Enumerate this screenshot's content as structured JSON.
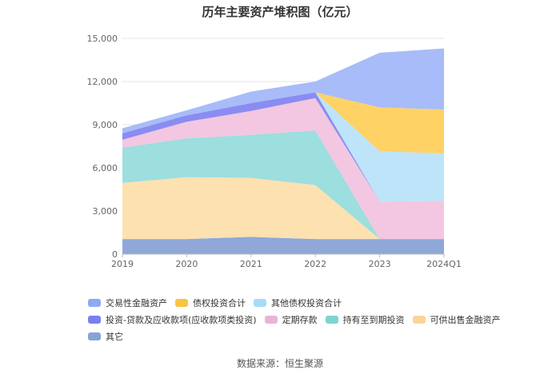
{
  "chart_data": {
    "type": "area",
    "title": "历年主要资产堆积图（亿元）",
    "categories": [
      "2019",
      "2020",
      "2021",
      "2022",
      "2023",
      "2024Q1"
    ],
    "ylim": [
      0,
      15000
    ],
    "yticks": [
      "0",
      "3,000",
      "6,000",
      "9,000",
      "12,000",
      "15,000"
    ],
    "ytick_values": [
      0,
      3000,
      6000,
      9000,
      12000,
      15000
    ],
    "grid": true,
    "legend_position": "bottom",
    "series": [
      {
        "name": "其它",
        "color": "#8fa8d8",
        "values": [
          1050,
          1050,
          1200,
          1050,
          1050,
          1050
        ]
      },
      {
        "name": "可供出售金融资产",
        "color": "#fde1b0",
        "values": [
          3900,
          4300,
          4100,
          3750,
          0,
          0
        ]
      },
      {
        "name": "持有至到期投资",
        "color": "#9ddede",
        "values": [
          2450,
          2700,
          3000,
          3800,
          0,
          0
        ]
      },
      {
        "name": "定期存款",
        "color": "#f3c7e1",
        "values": [
          550,
          1150,
          1650,
          2250,
          2600,
          2650
        ]
      },
      {
        "name": "投资-贷款及应收款项(应收款项类投资)",
        "color": "#8a8cf2",
        "values": [
          450,
          450,
          550,
          400,
          0,
          0
        ]
      },
      {
        "name": "其他债权投资合计",
        "color": "#bde4f8",
        "values": [
          0,
          0,
          0,
          0,
          3500,
          3300
        ]
      },
      {
        "name": "债权投资合计",
        "color": "#ffd266",
        "values": [
          0,
          0,
          0,
          0,
          3050,
          3050
        ]
      },
      {
        "name": "交易性金融资产",
        "color": "#a7bcf8",
        "values": [
          350,
          350,
          800,
          750,
          3800,
          4250
        ]
      }
    ],
    "legend_rows": [
      [
        {
          "name": "交易性金融资产",
          "color": "#8fa8f5"
        },
        {
          "name": "债权投资合计",
          "color": "#f9c440"
        },
        {
          "name": "其他债权投资合计",
          "color": "#a6dcf7"
        }
      ],
      [
        {
          "name": "投资-贷款及应收款项(应收款项类投资)",
          "color": "#7b7ff0"
        },
        {
          "name": "定期存款",
          "color": "#eab3d6"
        },
        {
          "name": "持有至到期投资",
          "color": "#7dd3d3"
        },
        {
          "name": "可供出售金融资产",
          "color": "#fcd49b"
        }
      ],
      [
        {
          "name": "其它",
          "color": "#86a4d4"
        }
      ]
    ],
    "source": "数据来源：恒生聚源"
  }
}
